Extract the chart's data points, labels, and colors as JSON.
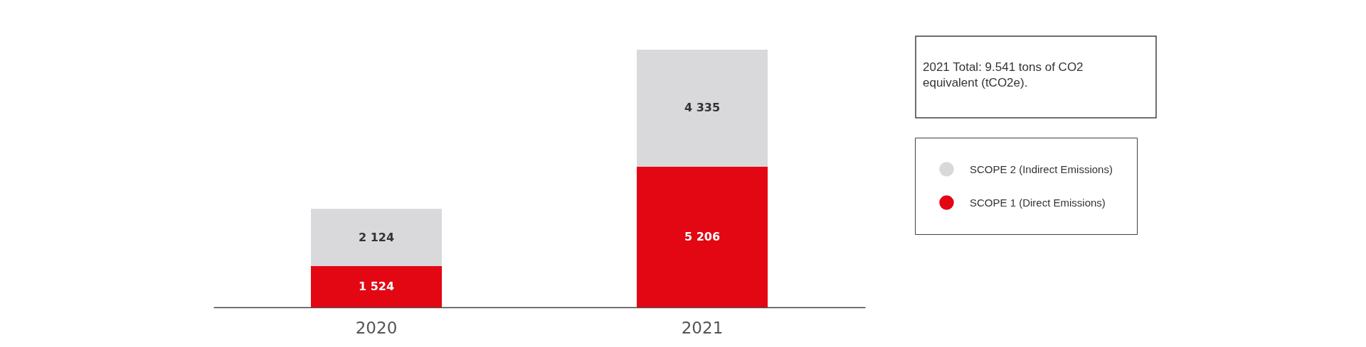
{
  "chart_data": {
    "type": "bar",
    "stacked": true,
    "categories": [
      "2020",
      "2021"
    ],
    "series": [
      {
        "name": "SCOPE 1 (Direct Emissions)",
        "color": "#e30613",
        "values": [
          1524,
          5206
        ],
        "value_labels": [
          "1 524",
          "5 206"
        ]
      },
      {
        "name": "SCOPE 2 (Indirect Emissions)",
        "color": "#d9d9dc",
        "values": [
          2124,
          4335
        ],
        "value_labels": [
          "2 124",
          "4 335"
        ]
      }
    ],
    "annotations": [
      "2021 Total:  9.541 tons of CO2 equivalent (tCO2e)."
    ],
    "legend": "right",
    "grid": false
  }
}
